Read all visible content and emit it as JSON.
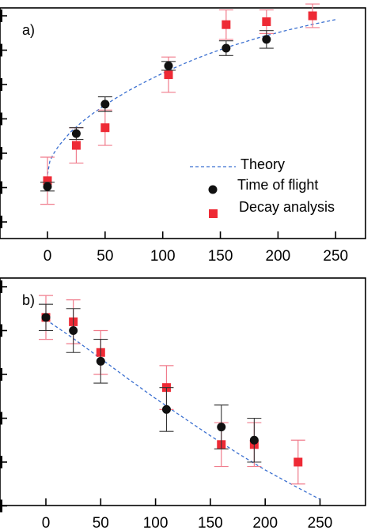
{
  "colors": {
    "time_of_flight": "#111111",
    "decay": "#ee2a35",
    "decay_err": "#f07c8c",
    "tof_err": "#333333",
    "theory": "#3a6fd0"
  },
  "chart_data": [
    {
      "type": "scatter",
      "panel_label": "a)",
      "x_ticks": [
        "0",
        "50",
        "100",
        "150",
        "200",
        "250"
      ],
      "xlim": [
        -12,
        262
      ],
      "ylim": [
        0,
        7
      ],
      "grid": false,
      "legend_position": "bottom-right",
      "series": [
        {
          "name": "Theory",
          "kind": "dashed-line",
          "x": [
            0,
            2,
            5,
            10,
            20,
            30,
            40,
            50,
            60,
            70,
            80,
            90,
            100,
            110,
            120,
            130,
            140,
            150,
            160,
            170,
            180,
            190,
            200,
            210,
            220,
            230,
            240,
            250
          ],
          "y": [
            1.6,
            2.05,
            2.3,
            2.6,
            3.05,
            3.4,
            3.7,
            3.97,
            4.22,
            4.45,
            4.66,
            4.86,
            5.05,
            5.23,
            5.4,
            5.56,
            5.71,
            5.85,
            5.98,
            6.1,
            6.22,
            6.33,
            6.43,
            6.53,
            6.62,
            6.71,
            6.79,
            6.87
          ]
        },
        {
          "name": "Time of flight",
          "kind": "circle",
          "x": [
            0,
            25,
            50,
            105,
            155,
            190
          ],
          "y": [
            1.2,
            3.0,
            4.0,
            5.3,
            5.9,
            6.2
          ],
          "err": [
            0.15,
            0.2,
            0.25,
            0.15,
            0.25,
            0.3
          ]
        },
        {
          "name": "Decay analysis",
          "kind": "square",
          "x": [
            0,
            25,
            50,
            105,
            155,
            190,
            230
          ],
          "y": [
            1.4,
            2.6,
            3.2,
            5.0,
            6.7,
            6.8,
            7.0
          ],
          "err": [
            0.8,
            0.6,
            0.6,
            0.6,
            0.5,
            0.4,
            0.4
          ]
        }
      ]
    },
    {
      "type": "scatter",
      "panel_label": "b)",
      "x_ticks": [
        "0",
        "50",
        "100",
        "150",
        "200",
        "250"
      ],
      "xlim": [
        -12,
        262
      ],
      "ylim": [
        0,
        5
      ],
      "grid": false,
      "series": [
        {
          "name": "Theory",
          "kind": "dashed-line",
          "x": [
            0,
            25,
            50,
            75,
            100,
            125,
            150,
            175,
            200,
            225,
            250
          ],
          "y": [
            4.25,
            3.82,
            3.36,
            2.9,
            2.45,
            2.02,
            1.6,
            1.2,
            0.82,
            0.48,
            0.15
          ]
        },
        {
          "name": "Time of flight",
          "kind": "circle",
          "x": [
            0,
            25,
            50,
            110,
            160,
            190
          ],
          "y": [
            4.3,
            4.0,
            3.3,
            2.2,
            1.8,
            1.5
          ],
          "err": [
            0.3,
            0.5,
            0.5,
            0.5,
            0.5,
            0.5
          ]
        },
        {
          "name": "Decay analysis",
          "kind": "square",
          "x": [
            0,
            25,
            50,
            110,
            160,
            190,
            230
          ],
          "y": [
            4.3,
            4.2,
            3.5,
            2.7,
            1.4,
            1.4,
            1.0
          ],
          "err": [
            0.5,
            0.5,
            0.5,
            0.5,
            0.5,
            0.5,
            0.5
          ]
        }
      ]
    }
  ]
}
